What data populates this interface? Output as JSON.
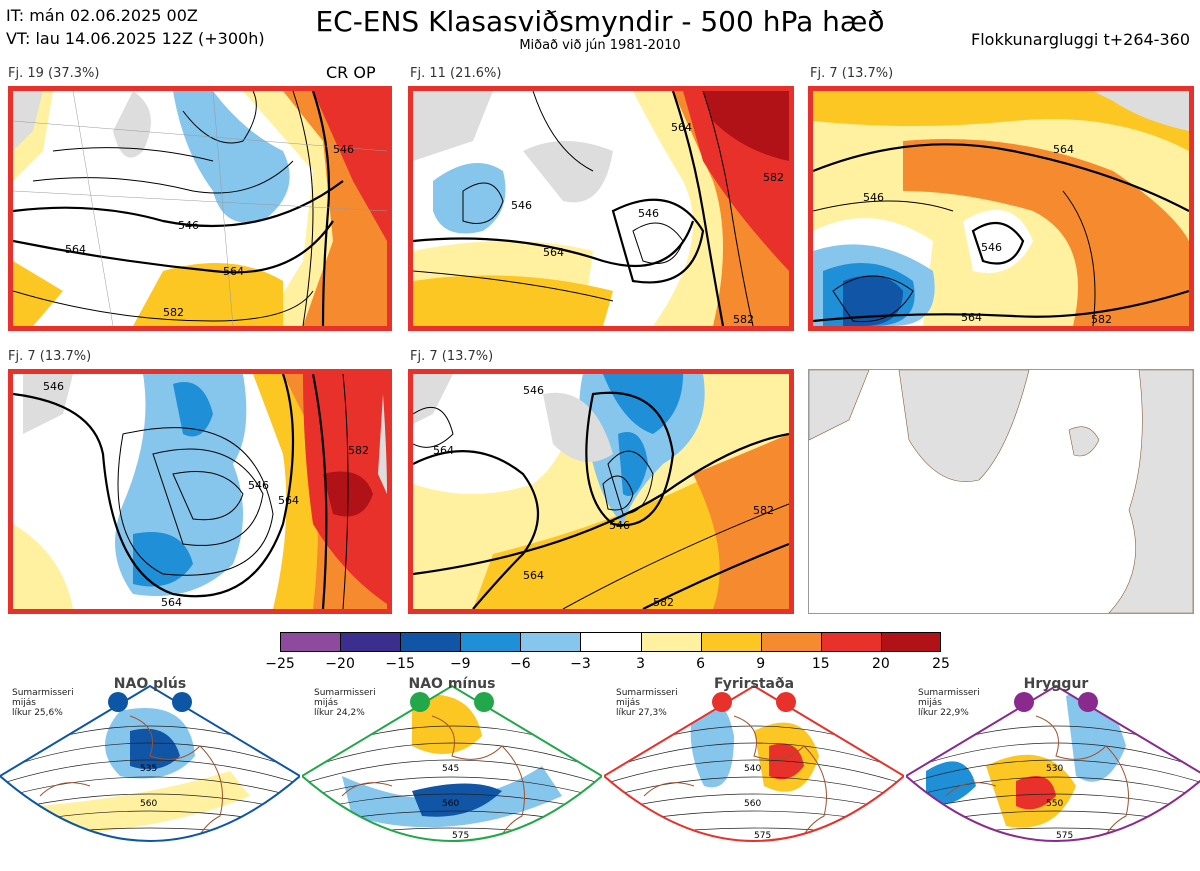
{
  "header": {
    "it_line": "IT: mán 02.06.2025 00Z",
    "vt_line": "VT: lau 14.06.2025 12Z  (+300h)",
    "title": "EC-ENS Klasasviðsmyndir - 500 hPa hæð",
    "subtitle": "Miðað við jún 1981-2010",
    "window": "Flokkunargluggi t+264-360"
  },
  "panels": [
    {
      "label": "Fj. 19 (37.3%)",
      "tag": "CR OP",
      "contours": [
        "546",
        "564",
        "582",
        "564",
        "546"
      ]
    },
    {
      "label": "Fj. 11 (21.6%)",
      "contours": [
        "564",
        "546",
        "546",
        "564",
        "582",
        "582"
      ]
    },
    {
      "label": "Fj. 7 (13.7%)",
      "contours": [
        "546",
        "564",
        "546",
        "564",
        "582"
      ]
    },
    {
      "label": "Fj. 7 (13.7%)",
      "contours": [
        "546",
        "564",
        "582",
        "564",
        "546"
      ]
    },
    {
      "label": "Fj. 7 (13.7%)",
      "contours": [
        "546",
        "546",
        "564",
        "564",
        "582",
        "582"
      ]
    }
  ],
  "colorbar": {
    "ticks": [
      "−25",
      "−20",
      "−15",
      "−9",
      "−6",
      "−3",
      "3",
      "6",
      "9",
      "15",
      "20",
      "25"
    ],
    "colors": [
      "#8e4a9c",
      "#3b2e8e",
      "#1155a6",
      "#1f8fd8",
      "#86c5ec",
      "#ffffff",
      "#fff1a0",
      "#fcc722",
      "#f58b2e",
      "#e8312b",
      "#b01217"
    ]
  },
  "regimes": [
    {
      "name": "NAO plús",
      "season": "Sumarmisseri",
      "domain": "mijás",
      "prob": "líkur 25,6%",
      "color": "#0d56a6",
      "contours": [
        "535",
        "560"
      ]
    },
    {
      "name": "NAO mínus",
      "season": "Sumarmisseri",
      "domain": "mijás",
      "prob": "líkur 24,2%",
      "color": "#22a84a",
      "contours": [
        "545",
        "560",
        "575"
      ]
    },
    {
      "name": "Fyrirstaða",
      "season": "Sumarmisseri",
      "domain": "mijás",
      "prob": "líkur 27,3%",
      "color": "#e8312b",
      "contours": [
        "540",
        "560",
        "575"
      ]
    },
    {
      "name": "Hryggur",
      "season": "Sumarmisseri",
      "domain": "mijás",
      "prob": "líkur 22,9%",
      "color": "#8b2a8e",
      "contours": [
        "530",
        "550",
        "575"
      ]
    }
  ]
}
